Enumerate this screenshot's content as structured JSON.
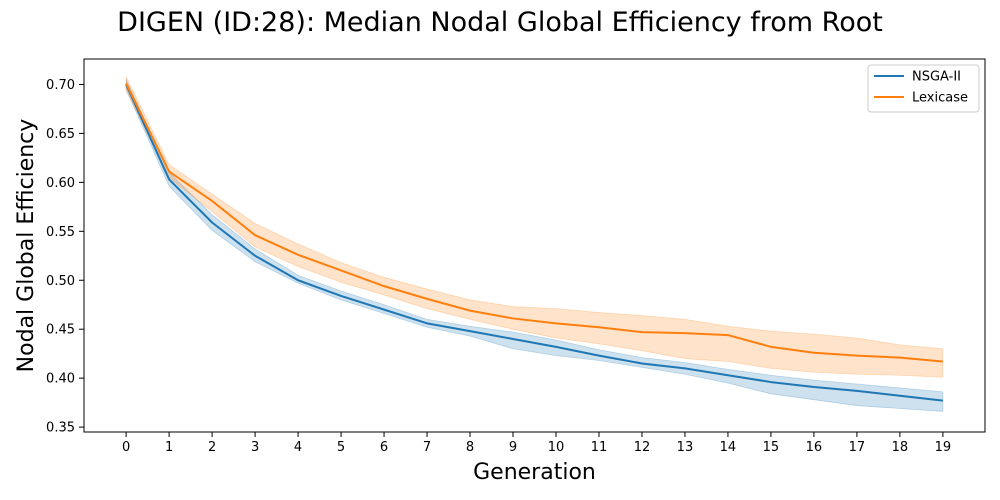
{
  "chart_data": {
    "type": "line",
    "title": "DIGEN (ID:28): Median Nodal Global Efficiency from Root",
    "xlabel": "Generation",
    "ylabel": "Nodal Global Efficiency",
    "xlim": [
      -0.98,
      19.98
    ],
    "ylim": [
      0.345,
      0.726
    ],
    "x_ticks": [
      0,
      1,
      2,
      3,
      4,
      5,
      6,
      7,
      8,
      9,
      10,
      11,
      12,
      13,
      14,
      15,
      16,
      17,
      18,
      19
    ],
    "y_ticks": [
      0.35,
      0.4,
      0.45,
      0.5,
      0.55,
      0.6,
      0.65,
      0.7
    ],
    "y_tick_labels": [
      "0.35",
      "0.40",
      "0.45",
      "0.50",
      "0.55",
      "0.60",
      "0.65",
      "0.70"
    ],
    "grid": false,
    "legend_position": "top-right",
    "x": [
      0,
      1,
      2,
      3,
      4,
      5,
      6,
      7,
      8,
      9,
      10,
      11,
      12,
      13,
      14,
      15,
      16,
      17,
      18,
      19
    ],
    "series": [
      {
        "name": "NSGA-II",
        "color": "#1f77b4",
        "values": [
          0.7,
          0.603,
          0.559,
          0.525,
          0.5,
          0.484,
          0.47,
          0.456,
          0.448,
          0.44,
          0.432,
          0.423,
          0.415,
          0.41,
          0.403,
          0.396,
          0.391,
          0.387,
          0.382,
          0.377
        ],
        "lower": [
          0.695,
          0.596,
          0.551,
          0.519,
          0.497,
          0.48,
          0.466,
          0.452,
          0.443,
          0.43,
          0.423,
          0.418,
          0.411,
          0.404,
          0.395,
          0.384,
          0.378,
          0.372,
          0.369,
          0.366
        ],
        "upper": [
          0.705,
          0.61,
          0.567,
          0.532,
          0.505,
          0.489,
          0.475,
          0.46,
          0.453,
          0.447,
          0.439,
          0.429,
          0.421,
          0.416,
          0.409,
          0.403,
          0.398,
          0.394,
          0.39,
          0.386
        ]
      },
      {
        "name": "Lexicase",
        "color": "#ff7f0e",
        "values": [
          0.701,
          0.611,
          0.581,
          0.546,
          0.526,
          0.51,
          0.494,
          0.481,
          0.469,
          0.461,
          0.456,
          0.452,
          0.447,
          0.446,
          0.444,
          0.432,
          0.426,
          0.423,
          0.421,
          0.417
        ],
        "lower": [
          0.694,
          0.605,
          0.57,
          0.534,
          0.514,
          0.498,
          0.485,
          0.471,
          0.46,
          0.45,
          0.441,
          0.435,
          0.428,
          0.42,
          0.417,
          0.41,
          0.406,
          0.404,
          0.403,
          0.401
        ],
        "upper": [
          0.708,
          0.618,
          0.588,
          0.558,
          0.537,
          0.518,
          0.503,
          0.491,
          0.48,
          0.473,
          0.471,
          0.467,
          0.464,
          0.46,
          0.453,
          0.448,
          0.445,
          0.441,
          0.434,
          0.43
        ]
      }
    ]
  }
}
